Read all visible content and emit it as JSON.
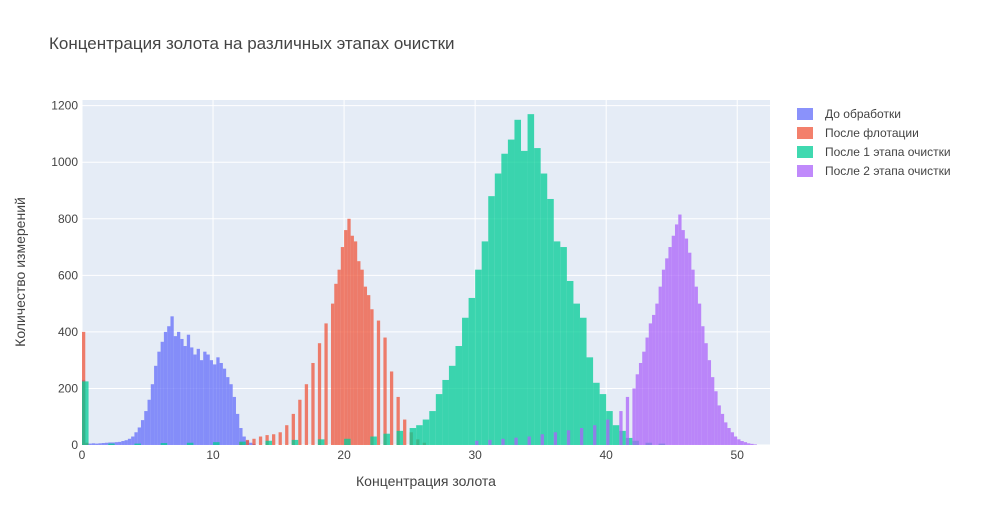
{
  "chart_data": {
    "type": "bar",
    "mode": "overlay histogram",
    "title": "Концентрация золота на различных этапах очистки",
    "xlabel": "Концентрация золота",
    "ylabel": "Количество измерений",
    "xlim": [
      0,
      52.5
    ],
    "ylim": [
      0,
      1220
    ],
    "x_ticks": [
      0,
      10,
      20,
      30,
      40,
      50
    ],
    "x_tick_labels": [
      "0",
      "10",
      "20",
      "30",
      "40",
      "50"
    ],
    "y_ticks": [
      0,
      200,
      400,
      600,
      800,
      1000,
      1200
    ],
    "y_tick_labels": [
      "0",
      "200",
      "400",
      "600",
      "800",
      "1000",
      "1200"
    ],
    "grid": true,
    "legend_position": "top-right, outside plot",
    "series": [
      {
        "name": "До обработки",
        "color": "#636efa",
        "bin_width": 0.25,
        "x": [
          0.0,
          0.25,
          0.5,
          0.75,
          1.0,
          1.25,
          1.5,
          1.75,
          2.0,
          2.25,
          2.5,
          2.75,
          3.0,
          3.25,
          3.5,
          3.75,
          4.0,
          4.25,
          4.5,
          4.75,
          5.0,
          5.25,
          5.5,
          5.75,
          6.0,
          6.25,
          6.5,
          6.75,
          7.0,
          7.25,
          7.5,
          7.75,
          8.0,
          8.25,
          8.5,
          8.75,
          9.0,
          9.25,
          9.5,
          9.75,
          10.0,
          10.25,
          10.5,
          10.75,
          11.0,
          11.25,
          11.5,
          11.75,
          12.0,
          12.25,
          12.5,
          12.75,
          13.0
        ],
        "values": [
          230,
          5,
          5,
          6,
          5,
          6,
          7,
          8,
          9,
          9,
          10,
          11,
          14,
          17,
          22,
          30,
          45,
          62,
          88,
          120,
          160,
          215,
          280,
          330,
          365,
          400,
          420,
          455,
          385,
          400,
          375,
          350,
          390,
          345,
          320,
          340,
          300,
          330,
          320,
          300,
          285,
          310,
          290,
          270,
          240,
          215,
          170,
          110,
          60,
          30,
          15,
          8,
          4
        ]
      },
      {
        "name": "После флотации",
        "color": "#ef553b",
        "bin_width": 0.25,
        "x": [
          0.0,
          0.25,
          12.0,
          12.5,
          13.0,
          13.5,
          14.0,
          14.5,
          15.0,
          15.5,
          16.0,
          16.5,
          17.0,
          17.5,
          18.0,
          18.5,
          19.0,
          19.25,
          19.5,
          19.75,
          20.0,
          20.25,
          20.5,
          20.75,
          21.0,
          21.25,
          21.5,
          21.75,
          22.0,
          22.5,
          23.0,
          23.5,
          24.0,
          24.5,
          25.0,
          25.5,
          26.0
        ],
        "values": [
          400,
          8,
          10,
          18,
          22,
          30,
          35,
          38,
          45,
          70,
          110,
          160,
          215,
          290,
          360,
          430,
          500,
          570,
          620,
          700,
          760,
          800,
          740,
          720,
          650,
          620,
          560,
          530,
          480,
          440,
          380,
          260,
          170,
          90,
          45,
          20,
          8
        ]
      },
      {
        "name": "После 1 этапа очистки",
        "color": "#00cc96",
        "bin_width": 0.5,
        "x": [
          0.0,
          2.0,
          4.0,
          6.0,
          8.0,
          10.0,
          12.0,
          14.0,
          16.0,
          18.0,
          20.0,
          22.0,
          23.0,
          24.0,
          25.0,
          25.5,
          26.0,
          26.5,
          27.0,
          27.5,
          28.0,
          28.5,
          29.0,
          29.5,
          30.0,
          30.5,
          31.0,
          31.5,
          32.0,
          32.5,
          33.0,
          33.5,
          34.0,
          34.5,
          35.0,
          35.5,
          36.0,
          36.5,
          37.0,
          37.5,
          38.0,
          38.5,
          39.0,
          39.5,
          40.0,
          40.5,
          41.0,
          41.5,
          42.0,
          43.0,
          44.0
        ],
        "values": [
          225,
          5,
          5,
          7,
          8,
          10,
          12,
          15,
          18,
          20,
          22,
          30,
          40,
          50,
          60,
          70,
          90,
          120,
          180,
          230,
          280,
          350,
          450,
          520,
          620,
          720,
          880,
          960,
          1030,
          1080,
          1150,
          1040,
          1170,
          1050,
          960,
          870,
          720,
          700,
          580,
          500,
          450,
          310,
          220,
          180,
          120,
          70,
          50,
          25,
          15,
          8,
          5
        ]
      },
      {
        "name": "После 2 этапа очистки",
        "color": "#ab63fa",
        "bin_width": 0.25,
        "x": [
          30.0,
          31.0,
          32.0,
          33.0,
          34.0,
          35.0,
          36.0,
          37.0,
          38.0,
          39.0,
          40.0,
          41.0,
          41.5,
          42.0,
          42.25,
          42.5,
          42.75,
          43.0,
          43.25,
          43.5,
          43.75,
          44.0,
          44.25,
          44.5,
          44.75,
          45.0,
          45.25,
          45.5,
          45.75,
          46.0,
          46.25,
          46.5,
          46.75,
          47.0,
          47.25,
          47.5,
          47.75,
          48.0,
          48.25,
          48.5,
          48.75,
          49.0,
          49.25,
          49.5,
          49.75,
          50.0,
          50.25,
          50.5,
          50.75,
          51.0,
          51.25
        ],
        "values": [
          15,
          18,
          22,
          26,
          30,
          38,
          45,
          52,
          60,
          70,
          90,
          120,
          170,
          200,
          250,
          290,
          330,
          380,
          430,
          460,
          500,
          560,
          620,
          660,
          700,
          740,
          780,
          815,
          760,
          730,
          680,
          620,
          560,
          500,
          420,
          360,
          300,
          240,
          190,
          140,
          110,
          80,
          60,
          45,
          30,
          20,
          14,
          10,
          6,
          4,
          2
        ]
      }
    ]
  }
}
